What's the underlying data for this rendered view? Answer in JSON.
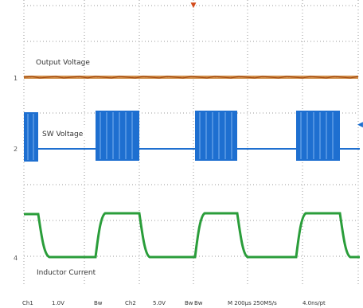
{
  "traces": {
    "ch1": {
      "label": "Output Voltage",
      "marker": "1",
      "color": "#b85c1a"
    },
    "ch2": {
      "label": "SW Voltage",
      "marker": "2",
      "color": "#1e6fd0"
    },
    "ch4": {
      "label": "Inductor Current",
      "marker": "4",
      "color": "#2a9d3a"
    }
  },
  "status_bar": {
    "ch1_name": "Ch1",
    "ch1_scale": "1.0V",
    "ch1_bw": "Bw",
    "ch2_name": "Ch2",
    "ch2_scale": "5.0V",
    "ch2_bw": "Bw",
    "ch4_bw": "Bw",
    "timebase": "M 200µs 250MS/s",
    "ch4_scale": "4.0ns/pt"
  },
  "markers": {
    "trigger_arrow": "◀",
    "top_trigger": "▼"
  },
  "icons": {
    "trigger_level": "trigger-arrow-icon",
    "trigger_position": "trigger-position-icon"
  }
}
